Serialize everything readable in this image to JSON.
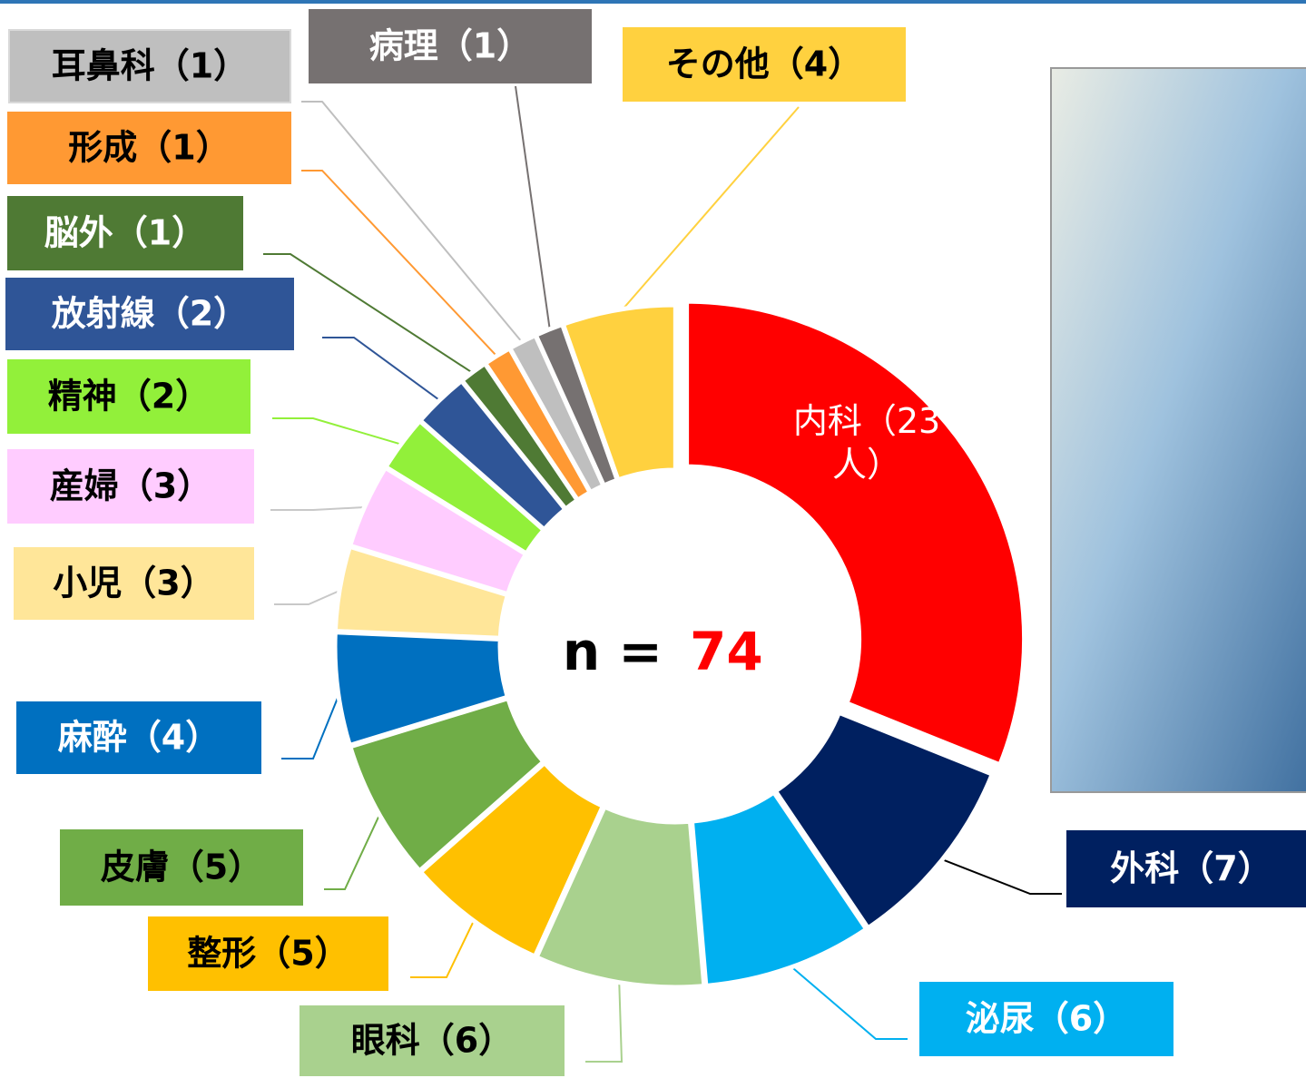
{
  "chart_data": {
    "type": "donut",
    "values": [
      23,
      7,
      6,
      6,
      5,
      5,
      4,
      3,
      3,
      2,
      2,
      1,
      1,
      1,
      1,
      4
    ],
    "value_labels": [
      "内科（23人）",
      "外科（7）",
      "泌尿（6）",
      "眼科（6）",
      "整形（5）",
      "皮膚（5）",
      "麻酔（4）",
      "小児（3）",
      "産婦（3）",
      "精神（2）",
      "放射線（2）",
      "脳外（1）",
      "形成（1）",
      "耳鼻科（1）",
      "病理（1）",
      "その他（4）"
    ],
    "colors": [
      "#ff0000",
      "#002060",
      "#00b0f0",
      "#a9d18e",
      "#ffc000",
      "#70ad47",
      "#0070c0",
      "#ffe699",
      "#ffccff",
      "#92f03a",
      "#2f5597",
      "#4f7a34",
      "#ff9933",
      "#bfbfbf",
      "#767171",
      "#ffd13f"
    ],
    "total_label": "n =",
    "total": 74
  }
}
